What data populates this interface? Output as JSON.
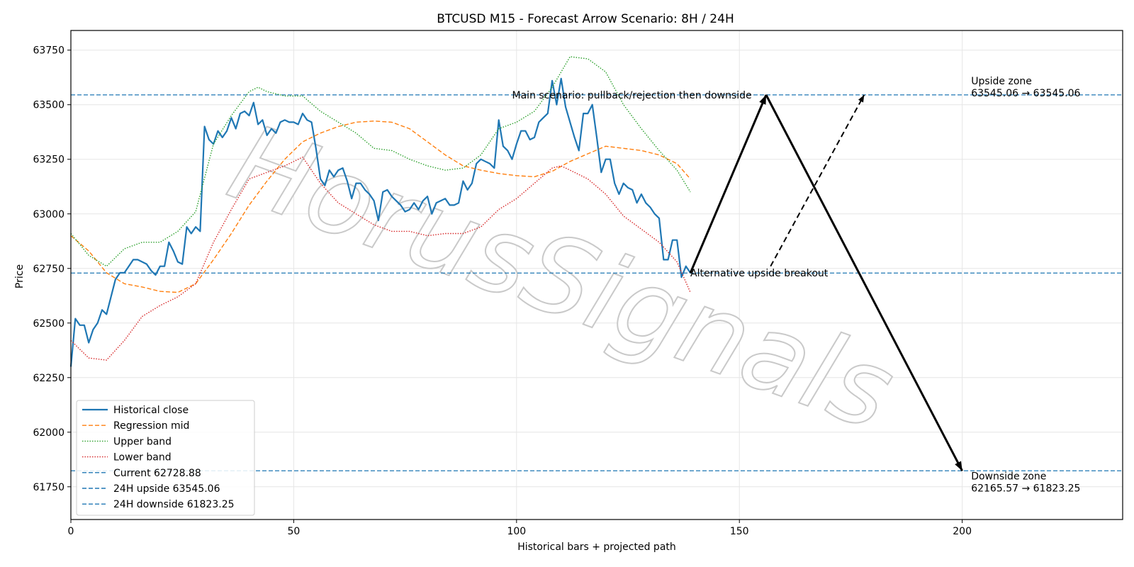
{
  "chart_data": {
    "type": "line",
    "title": "BTCUSD M15 - Forecast Arrow Scenario: 8H / 24H",
    "xlabel": "Historical bars + projected path",
    "ylabel": "Price",
    "xlim": [
      0,
      236
    ],
    "ylim": [
      61600,
      63840
    ],
    "xticks": [
      0,
      50,
      100,
      150,
      200
    ],
    "yticks": [
      61750,
      62000,
      62250,
      62500,
      62750,
      63000,
      63250,
      63500,
      63750
    ],
    "grid": true,
    "legend_position": "bottom-left",
    "watermark": "HorusSignals",
    "series": [
      {
        "name": "Historical close",
        "style": "solid",
        "color": "#1f77b4",
        "x": [
          0,
          1,
          2,
          3,
          4,
          5,
          6,
          7,
          8,
          9,
          10,
          11,
          12,
          13,
          14,
          15,
          16,
          17,
          18,
          19,
          20,
          21,
          22,
          23,
          24,
          25,
          26,
          27,
          28,
          29,
          30,
          31,
          32,
          33,
          34,
          35,
          36,
          37,
          38,
          39,
          40,
          41,
          42,
          43,
          44,
          45,
          46,
          47,
          48,
          49,
          50,
          51,
          52,
          53,
          54,
          55,
          56,
          57,
          58,
          59,
          60,
          61,
          62,
          63,
          64,
          65,
          66,
          67,
          68,
          69,
          70,
          71,
          72,
          73,
          74,
          75,
          76,
          77,
          78,
          79,
          80,
          81,
          82,
          83,
          84,
          85,
          86,
          87,
          88,
          89,
          90,
          91,
          92,
          93,
          94,
          95,
          96,
          97,
          98,
          99,
          100,
          101,
          102,
          103,
          104,
          105,
          106,
          107,
          108,
          109,
          110,
          111,
          112,
          113,
          114,
          115,
          116,
          117,
          118,
          119,
          120,
          121,
          122,
          123,
          124,
          125,
          126,
          127,
          128,
          129,
          130,
          131,
          132,
          133,
          134,
          135,
          136,
          137,
          138,
          139
        ],
        "values": [
          62300,
          62520,
          62490,
          62490,
          62410,
          62470,
          62500,
          62560,
          62540,
          62620,
          62700,
          62730,
          62730,
          62760,
          62790,
          62790,
          62780,
          62770,
          62740,
          62720,
          62760,
          62760,
          62870,
          62830,
          62780,
          62770,
          62940,
          62910,
          62940,
          62920,
          63400,
          63340,
          63320,
          63380,
          63350,
          63380,
          63440,
          63390,
          63460,
          63470,
          63450,
          63510,
          63410,
          63430,
          63360,
          63390,
          63370,
          63420,
          63430,
          63420,
          63420,
          63410,
          63460,
          63430,
          63420,
          63300,
          63160,
          63130,
          63200,
          63170,
          63200,
          63210,
          63150,
          63070,
          63140,
          63140,
          63110,
          63090,
          63060,
          62970,
          63100,
          63110,
          63080,
          63060,
          63040,
          63010,
          63020,
          63050,
          63020,
          63060,
          63080,
          63000,
          63050,
          63060,
          63070,
          63040,
          63040,
          63050,
          63150,
          63110,
          63140,
          63230,
          63250,
          63240,
          63230,
          63210,
          63430,
          63310,
          63290,
          63250,
          63320,
          63380,
          63380,
          63340,
          63350,
          63420,
          63440,
          63460,
          63610,
          63500,
          63620,
          63490,
          63420,
          63350,
          63290,
          63460,
          63460,
          63500,
          63350,
          63190,
          63250,
          63250,
          63140,
          63090,
          63140,
          63120,
          63110,
          63050,
          63090,
          63050,
          63030,
          63000,
          62980,
          62790,
          62790,
          62880,
          62880,
          62710,
          62760,
          62730
        ]
      },
      {
        "name": "Regression mid",
        "style": "dashed",
        "color": "#ff7f0e",
        "x": [
          0,
          4,
          8,
          12,
          16,
          20,
          24,
          28,
          32,
          36,
          40,
          44,
          48,
          52,
          56,
          60,
          64,
          68,
          72,
          76,
          80,
          84,
          88,
          92,
          96,
          100,
          104,
          108,
          112,
          116,
          120,
          124,
          128,
          132,
          136,
          139
        ],
        "values": [
          62900,
          62830,
          62730,
          62680,
          62665,
          62645,
          62640,
          62680,
          62790,
          62910,
          63040,
          63150,
          63250,
          63330,
          63370,
          63400,
          63420,
          63425,
          63420,
          63390,
          63330,
          63270,
          63220,
          63200,
          63185,
          63175,
          63170,
          63195,
          63240,
          63275,
          63310,
          63300,
          63290,
          63270,
          63230,
          63160
        ]
      },
      {
        "name": "Upper band",
        "style": "dotted",
        "color": "#2ca02c",
        "x": [
          0,
          4,
          8,
          12,
          16,
          20,
          24,
          28,
          32,
          36,
          40,
          42,
          44,
          48,
          52,
          56,
          60,
          64,
          68,
          72,
          76,
          80,
          84,
          88,
          92,
          96,
          100,
          104,
          108,
          112,
          116,
          120,
          124,
          128,
          132,
          136,
          139
        ],
        "values": [
          62910,
          62810,
          62760,
          62840,
          62870,
          62870,
          62920,
          63010,
          63320,
          63450,
          63560,
          63580,
          63560,
          63540,
          63540,
          63470,
          63420,
          63370,
          63300,
          63290,
          63250,
          63220,
          63200,
          63210,
          63270,
          63390,
          63420,
          63470,
          63580,
          63720,
          63710,
          63650,
          63500,
          63390,
          63290,
          63200,
          63100
        ]
      },
      {
        "name": "Lower band",
        "style": "dotted",
        "color": "#d62728",
        "x": [
          0,
          4,
          8,
          12,
          16,
          20,
          24,
          28,
          32,
          36,
          40,
          44,
          48,
          52,
          56,
          60,
          64,
          68,
          72,
          76,
          80,
          84,
          88,
          92,
          96,
          100,
          104,
          108,
          110,
          112,
          116,
          120,
          124,
          128,
          132,
          136,
          139
        ],
        "values": [
          62420,
          62340,
          62330,
          62420,
          62530,
          62580,
          62620,
          62680,
          62870,
          63020,
          63160,
          63190,
          63220,
          63260,
          63140,
          63050,
          63000,
          62950,
          62920,
          62920,
          62900,
          62910,
          62910,
          62940,
          63020,
          63070,
          63140,
          63210,
          63220,
          63200,
          63160,
          63090,
          62990,
          62930,
          62870,
          62780,
          62640
        ]
      },
      {
        "name": "Current 62728.88",
        "style": "dashed",
        "color": "#1f77b4",
        "hline": 62728.88
      },
      {
        "name": "24H upside 63545.06",
        "style": "dashed",
        "color": "#1f77b4",
        "hline": 63545.06
      },
      {
        "name": "24H downside 61823.25",
        "style": "dashed",
        "color": "#1f77b4",
        "hline": 61823.25
      }
    ],
    "arrows": [
      {
        "from": [
          139,
          62729
        ],
        "to": [
          156,
          63545
        ],
        "style": "solid"
      },
      {
        "from": [
          156,
          63545
        ],
        "to": [
          200,
          61823
        ],
        "style": "solid"
      },
      {
        "from": [
          157,
          62760
        ],
        "to": [
          178,
          63545
        ],
        "style": "dashed"
      }
    ],
    "annotations": [
      {
        "text": "Main scenario: pullback/rejection then downside",
        "x": 99,
        "y": 63545
      },
      {
        "text": "Alternative upside breakout",
        "x": 139,
        "y": 62729
      },
      {
        "text": "Upside zone",
        "x": 202,
        "y": 63610
      },
      {
        "text": "63545.06 → 63545.06",
        "x": 202,
        "y": 63555
      },
      {
        "text": "Downside zone",
        "x": 202,
        "y": 61800
      },
      {
        "text": "62165.57 → 61823.25",
        "x": 202,
        "y": 61745
      }
    ]
  }
}
